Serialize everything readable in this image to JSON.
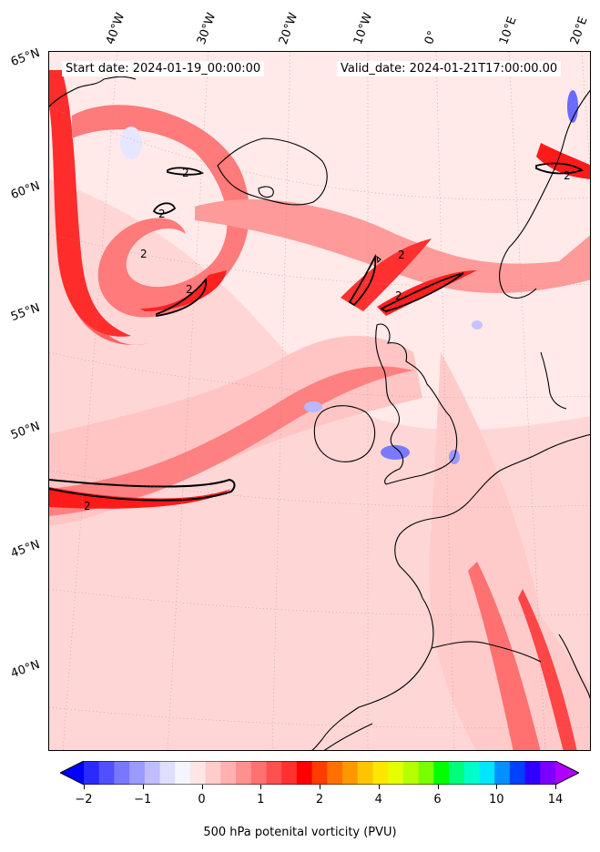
{
  "header": {
    "start_date": "Start date: 2024-01-19_00:00:00",
    "valid_date": "Valid_date: 2024-01-21T17:00:00.00"
  },
  "longitude_labels": [
    "40°W",
    "30°W",
    "20°W",
    "10°W",
    "0°",
    "10°E",
    "20°E"
  ],
  "latitude_labels": [
    "65°N",
    "60°N",
    "55°N",
    "50°N",
    "45°N",
    "40°N"
  ],
  "contour_label": "2",
  "colorbar": {
    "ticks": [
      "−2",
      "−1",
      "0",
      "1",
      "2",
      "4",
      "6",
      "10",
      "14"
    ],
    "label": "500 hPa potenital vorticity (PVU)",
    "colors": [
      "#0000ff",
      "#2a2aff",
      "#5050ff",
      "#7878ff",
      "#9a9aff",
      "#bdbdff",
      "#dedeff",
      "#f5f5ff",
      "#ffe5e5",
      "#ffcccc",
      "#ffb0b0",
      "#ff9090",
      "#ff7070",
      "#ff5050",
      "#ff3030",
      "#ff0000",
      "#ff3c00",
      "#ff7000",
      "#ff9800",
      "#ffc400",
      "#ffe600",
      "#e6ff00",
      "#b4ff00",
      "#78ff00",
      "#00ff00",
      "#00ff78",
      "#00ffc8",
      "#00e6ff",
      "#0090ff",
      "#0040ff",
      "#3000ff",
      "#7a00ff",
      "#b000ff"
    ]
  }
}
